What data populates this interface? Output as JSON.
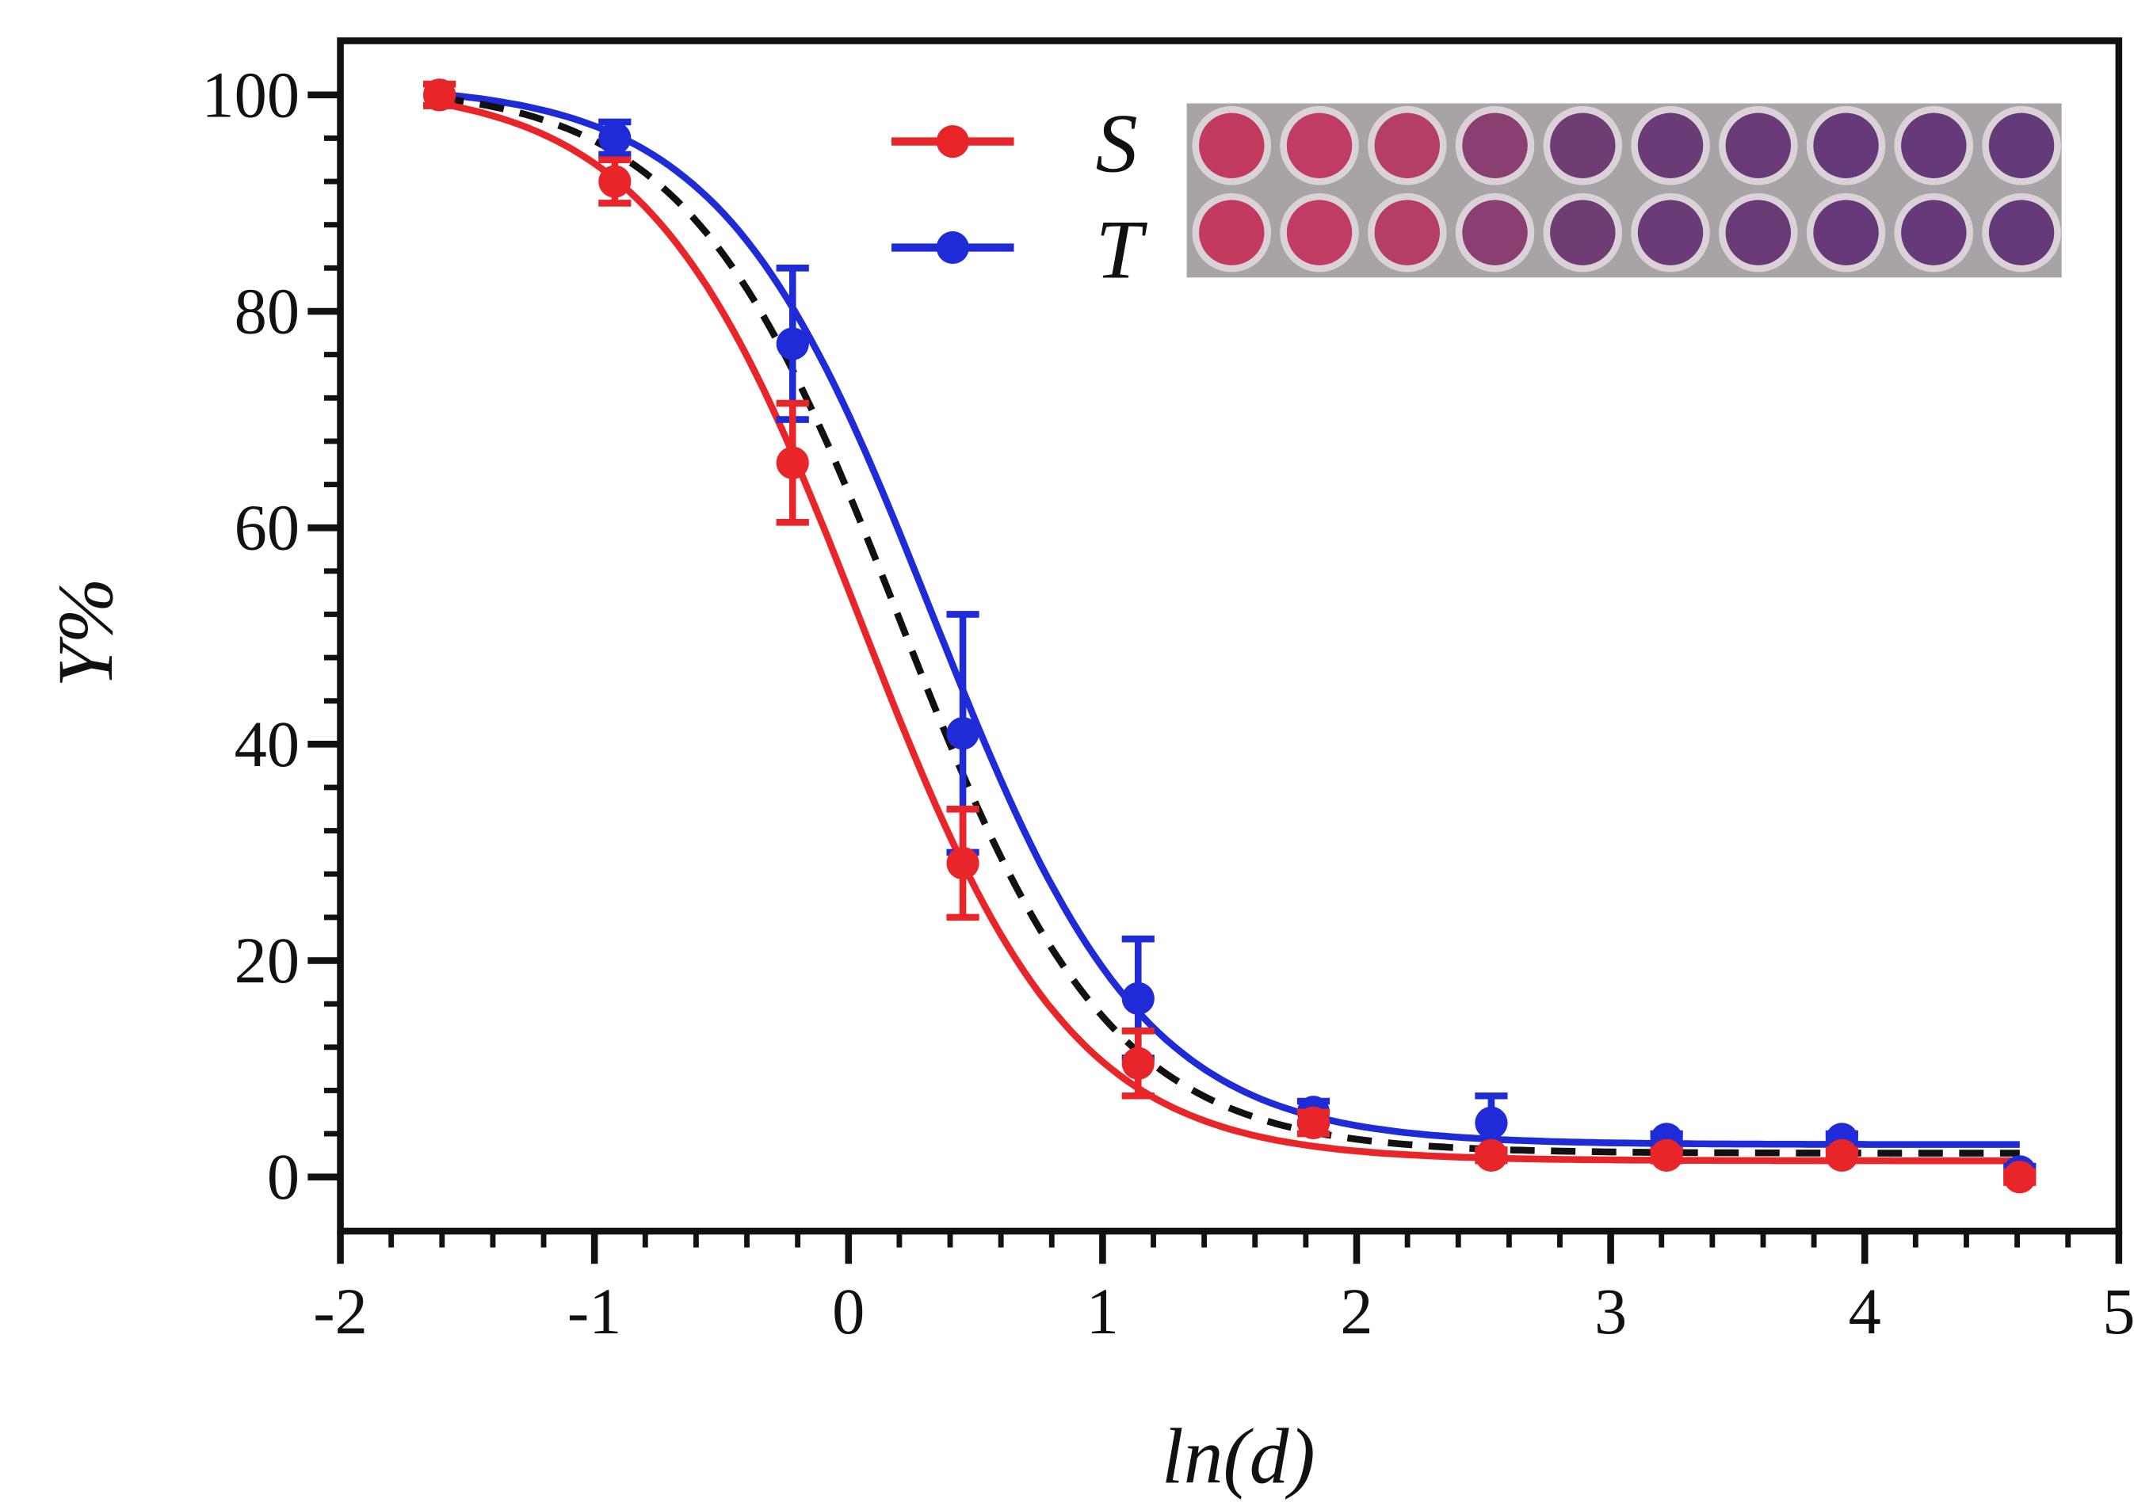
{
  "chart_data": {
    "type": "line",
    "x_label": "ln(d)",
    "y_label": "Y%",
    "x": [
      -1.61,
      -0.92,
      -0.22,
      0.45,
      1.14,
      1.83,
      2.53,
      3.22,
      3.91,
      4.61
    ],
    "series": [
      {
        "name": "S",
        "color": "#e8262a",
        "values": [
          100,
          92,
          66,
          29,
          10.5,
          5,
          2,
          2,
          2,
          0
        ],
        "errors": [
          1,
          2,
          5.5,
          5,
          3,
          1,
          0.5,
          0.5,
          0.5,
          0.5
        ]
      },
      {
        "name": "T",
        "color": "#1f2bd6",
        "values": [
          100,
          96,
          77,
          41,
          16.5,
          6,
          5,
          3.5,
          3.5,
          0.5
        ],
        "errors": [
          1,
          1.5,
          7,
          11,
          5.5,
          1,
          2.5,
          0.5,
          0.5,
          0.5
        ]
      }
    ],
    "fits": [
      {
        "color": "#e8262a",
        "dashed": false,
        "bottom": 1.5,
        "top": 101,
        "x50": 0.05,
        "slope": 2.41
      },
      {
        "color": "#1f2bd6",
        "dashed": false,
        "bottom": 3,
        "top": 101,
        "x50": 0.33,
        "slope": 2.4
      },
      {
        "color": "#111111",
        "dashed": true,
        "bottom": 2.2,
        "top": 101,
        "x50": 0.2,
        "slope": 2.4
      }
    ],
    "xlim": [
      -2,
      5
    ],
    "xticks": [
      -2,
      -1,
      0,
      1,
      2,
      3,
      4,
      5
    ],
    "ylim": [
      -5,
      105
    ],
    "yticks": [
      0,
      20,
      40,
      60,
      80,
      100
    ]
  }
}
